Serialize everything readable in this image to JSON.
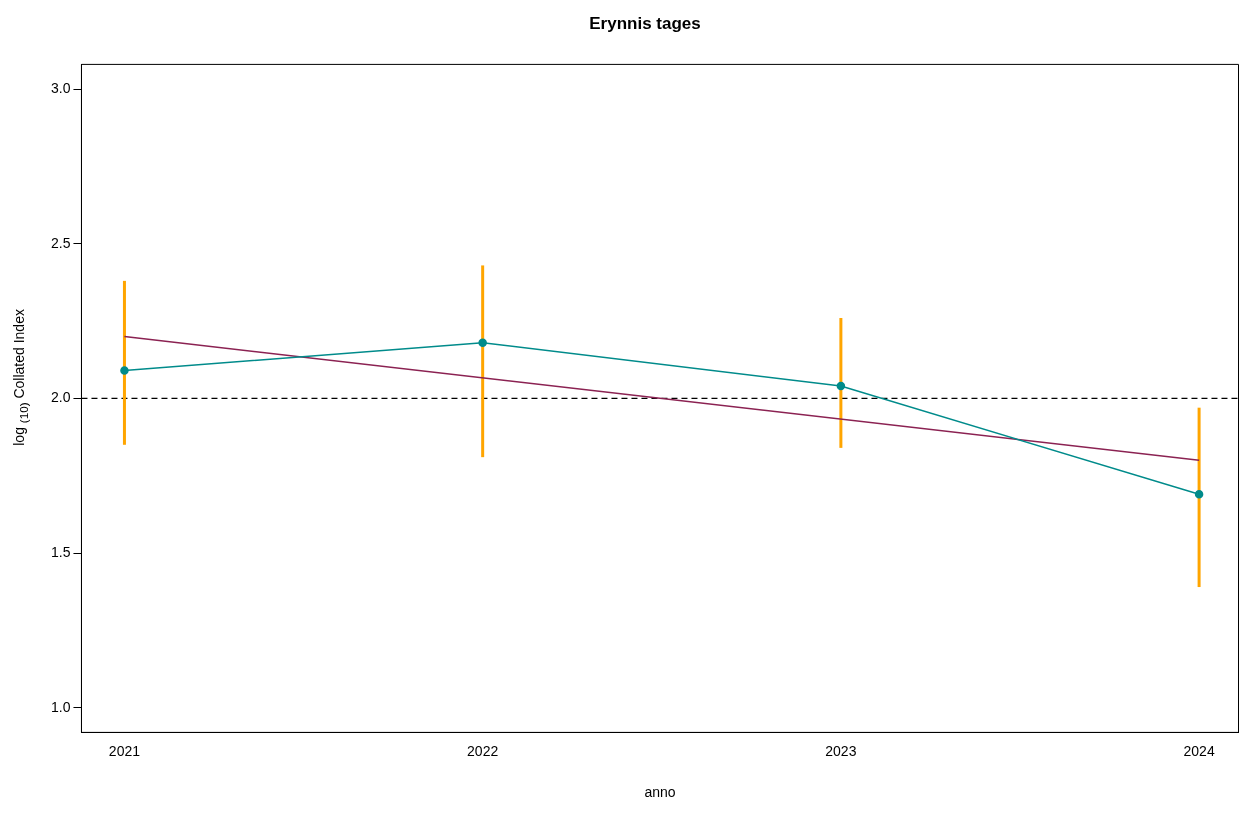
{
  "chart_data": {
    "type": "line",
    "title": "Erynnis tages",
    "xlabel": "anno",
    "ylabel": "log $_{(10)}$ Collated Index",
    "x": [
      2021,
      2022,
      2023,
      2024
    ],
    "series": [
      {
        "color": "#008b8b",
        "values": [
          2.09,
          2.18,
          2.04,
          1.69
        ],
        "errors": [
          [
            1.85,
            2.38
          ],
          [
            1.81,
            2.43
          ],
          [
            1.84,
            2.26
          ],
          [
            1.39,
            1.97
          ]
        ],
        "marker": "circle"
      },
      {
        "color": "#8b2252",
        "x": [
          2021,
          2024
        ],
        "values": [
          2.2,
          1.8
        ],
        "marker": "none"
      }
    ],
    "xlim": [
      2020.88,
      2024.11
    ],
    "xticks": [
      2021,
      2022,
      2023,
      2024
    ],
    "ylim": [
      0.92,
      3.08
    ],
    "yticks": [
      {
        "value": 1,
        "label": "1.0"
      },
      1.5,
      {
        "value": 2,
        "label": "2.0"
      },
      2.5,
      {
        "value": 3,
        "label": "3.0"
      }
    ],
    "ref_lines": [
      {
        "axis": "y",
        "value": 2,
        "color": "#000000",
        "line_style": "dashed"
      }
    ],
    "grid": false,
    "legend": false
  }
}
